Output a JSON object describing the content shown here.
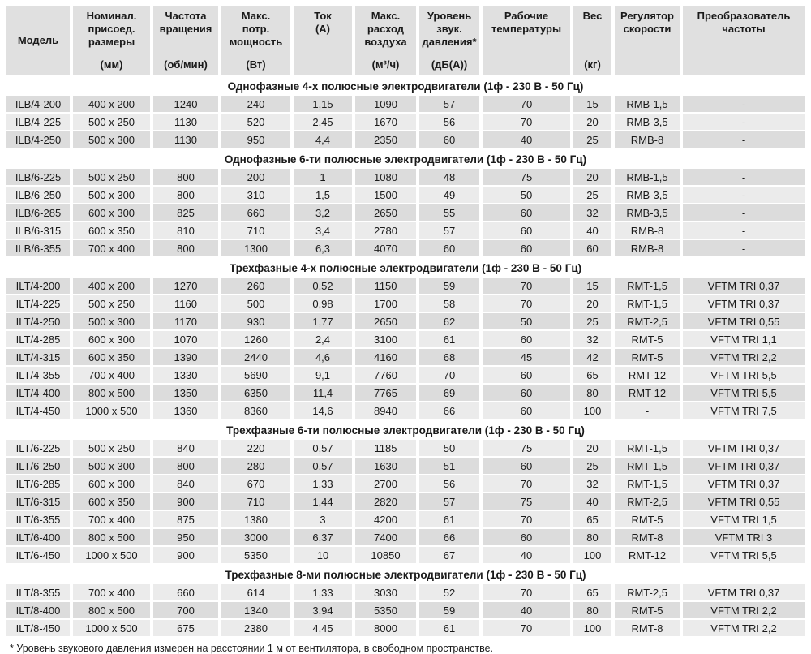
{
  "colors": {
    "header_cell": "#e0e0e0",
    "row_dark": "#dcdcdc",
    "row_light": "#ebebeb",
    "section_title_bg": "#ffffff",
    "text": "#1a1a1a"
  },
  "footnote": "* Уровень звукового давления измерен на расстоянии 1 м от вентилятора, в свободном пространстве.",
  "table": {
    "columns": [
      {
        "id": "model",
        "lines": [
          "Модель"
        ],
        "center": true
      },
      {
        "id": "dimensions",
        "lines": [
          "Номинал.",
          "присоед.",
          "размеры"
        ],
        "unit": "(мм)",
        "unit_bottom": true
      },
      {
        "id": "rotation-speed",
        "lines": [
          "Частота",
          "вращения"
        ],
        "unit": "(об/мин)",
        "unit_bottom": true
      },
      {
        "id": "max-power",
        "lines": [
          "Макс.",
          "потр.",
          "мощность"
        ],
        "unit": "(Вт)",
        "unit_bottom": true
      },
      {
        "id": "current",
        "lines": [
          "Ток",
          "(А)"
        ]
      },
      {
        "id": "max-airflow",
        "lines": [
          "Макс.",
          "расход",
          "воздуха"
        ],
        "unit": "(м³/ч)",
        "unit_bottom": true
      },
      {
        "id": "sound-level",
        "lines": [
          "Уровень",
          "звук.",
          "давления*"
        ],
        "unit": "(дБ(А))",
        "unit_bottom": true
      },
      {
        "id": "work-temperature",
        "lines": [
          "Рабочие",
          "температуры"
        ]
      },
      {
        "id": "weight",
        "lines": [
          "Вес"
        ],
        "unit": "(кг)",
        "unit_bottom": true
      },
      {
        "id": "speed-regulator",
        "lines": [
          "Регулятор",
          "скорости"
        ]
      },
      {
        "id": "freq-converter",
        "lines": [
          "Преобразователь",
          "частоты"
        ]
      }
    ],
    "sections": [
      {
        "title": "Однофазные 4-х полюсные электродвигатели (1ф - 230 В - 50 Гц)",
        "row_shade_start": "dark",
        "rows": [
          [
            "ILB/4-200",
            "400 x 200",
            "1240",
            "240",
            "1,15",
            "1090",
            "57",
            "70",
            "15",
            "RMB-1,5",
            "-"
          ],
          [
            "ILB/4-225",
            "500 x 250",
            "1130",
            "520",
            "2,45",
            "1670",
            "56",
            "70",
            "20",
            "RMB-3,5",
            "-"
          ],
          [
            "ILB/4-250",
            "500 x 300",
            "1130",
            "950",
            "4,4",
            "2350",
            "60",
            "40",
            "25",
            "RMB-8",
            "-"
          ]
        ]
      },
      {
        "title": "Однофазные 6-ти полюсные электродвигатели (1ф - 230 В - 50 Гц)",
        "row_shade_start": "dark",
        "rows": [
          [
            "ILB/6-225",
            "500 x 250",
            "800",
            "200",
            "1",
            "1080",
            "48",
            "75",
            "20",
            "RMB-1,5",
            "-"
          ],
          [
            "ILB/6-250",
            "500 x 300",
            "800",
            "310",
            "1,5",
            "1500",
            "49",
            "50",
            "25",
            "RMB-3,5",
            "-"
          ],
          [
            "ILB/6-285",
            "600 x 300",
            "825",
            "660",
            "3,2",
            "2650",
            "55",
            "60",
            "32",
            "RMB-3,5",
            "-"
          ],
          [
            "ILB/6-315",
            "600 x 350",
            "810",
            "710",
            "3,4",
            "2780",
            "57",
            "60",
            "40",
            "RMB-8",
            "-"
          ],
          [
            "ILB/6-355",
            "700 x 400",
            "800",
            "1300",
            "6,3",
            "4070",
            "60",
            "60",
            "60",
            "RMB-8",
            "-"
          ]
        ]
      },
      {
        "title": "Трехфазные 4-х полюсные электродвигатели (1ф - 230 В - 50 Гц)",
        "row_shade_start": "dark",
        "rows": [
          [
            "ILT/4-200",
            "400 x 200",
            "1270",
            "260",
            "0,52",
            "1150",
            "59",
            "70",
            "15",
            "RMT-1,5",
            "VFTM TRI 0,37"
          ],
          [
            "ILT/4-225",
            "500 x 250",
            "1160",
            "500",
            "0,98",
            "1700",
            "58",
            "70",
            "20",
            "RMT-1,5",
            "VFTM TRI 0,37"
          ],
          [
            "ILT/4-250",
            "500 x 300",
            "1170",
            "930",
            "1,77",
            "2650",
            "62",
            "50",
            "25",
            "RMT-2,5",
            "VFTM TRI 0,55"
          ],
          [
            "ILT/4-285",
            "600 x 300",
            "1070",
            "1260",
            "2,4",
            "3100",
            "61",
            "60",
            "32",
            "RMT-5",
            "VFTM TRI 1,1"
          ],
          [
            "ILT/4-315",
            "600 x 350",
            "1390",
            "2440",
            "4,6",
            "4160",
            "68",
            "45",
            "42",
            "RMT-5",
            "VFTM TRI 2,2"
          ],
          [
            "ILT/4-355",
            "700 x 400",
            "1330",
            "5690",
            "9,1",
            "7760",
            "70",
            "60",
            "65",
            "RMT-12",
            "VFTM TRI 5,5"
          ],
          [
            "ILT/4-400",
            "800 x 500",
            "1350",
            "6350",
            "11,4",
            "7765",
            "69",
            "60",
            "80",
            "RMT-12",
            "VFTM TRI 5,5"
          ],
          [
            "ILT/4-450",
            "1000 x 500",
            "1360",
            "8360",
            "14,6",
            "8940",
            "66",
            "60",
            "100",
            "-",
            "VFTM TRI 7,5"
          ]
        ]
      },
      {
        "title": "Трехфазные 6-ти полюсные электродвигатели (1ф - 230 В - 50 Гц)",
        "row_shade_start": "light",
        "rows": [
          [
            "ILT/6-225",
            "500 x 250",
            "840",
            "220",
            "0,57",
            "1185",
            "50",
            "75",
            "20",
            "RMT-1,5",
            "VFTM TRI 0,37"
          ],
          [
            "ILT/6-250",
            "500 x 300",
            "800",
            "280",
            "0,57",
            "1630",
            "51",
            "60",
            "25",
            "RMT-1,5",
            "VFTM TRI 0,37"
          ],
          [
            "ILT/6-285",
            "600 x 300",
            "840",
            "670",
            "1,33",
            "2700",
            "56",
            "70",
            "32",
            "RMT-1,5",
            "VFTM TRI 0,37"
          ],
          [
            "ILT/6-315",
            "600 x 350",
            "900",
            "710",
            "1,44",
            "2820",
            "57",
            "75",
            "40",
            "RMT-2,5",
            "VFTM TRI 0,55"
          ],
          [
            "ILT/6-355",
            "700 x 400",
            "875",
            "1380",
            "3",
            "4200",
            "61",
            "70",
            "65",
            "RMT-5",
            "VFTM TRI 1,5"
          ],
          [
            "ILT/6-400",
            "800 x 500",
            "950",
            "3000",
            "6,37",
            "7400",
            "66",
            "60",
            "80",
            "RMT-8",
            "VFTM TRI 3"
          ],
          [
            "ILT/6-450",
            "1000 x 500",
            "900",
            "5350",
            "10",
            "10850",
            "67",
            "40",
            "100",
            "RMT-12",
            "VFTM TRI 5,5"
          ]
        ]
      },
      {
        "title": "Трехфазные 8-ми полюсные электродвигатели (1ф - 230 В - 50 Гц)",
        "row_shade_start": "light",
        "rows": [
          [
            "ILT/8-355",
            "700 x 400",
            "660",
            "614",
            "1,33",
            "3030",
            "52",
            "70",
            "65",
            "RMT-2,5",
            "VFTM TRI 0,37"
          ],
          [
            "ILT/8-400",
            "800 x 500",
            "700",
            "1340",
            "3,94",
            "5350",
            "59",
            "40",
            "80",
            "RMT-5",
            "VFTM TRI 2,2"
          ],
          [
            "ILT/8-450",
            "1000 x 500",
            "675",
            "2380",
            "4,45",
            "8000",
            "61",
            "70",
            "100",
            "RMT-8",
            "VFTM TRI 2,2"
          ]
        ]
      }
    ]
  }
}
